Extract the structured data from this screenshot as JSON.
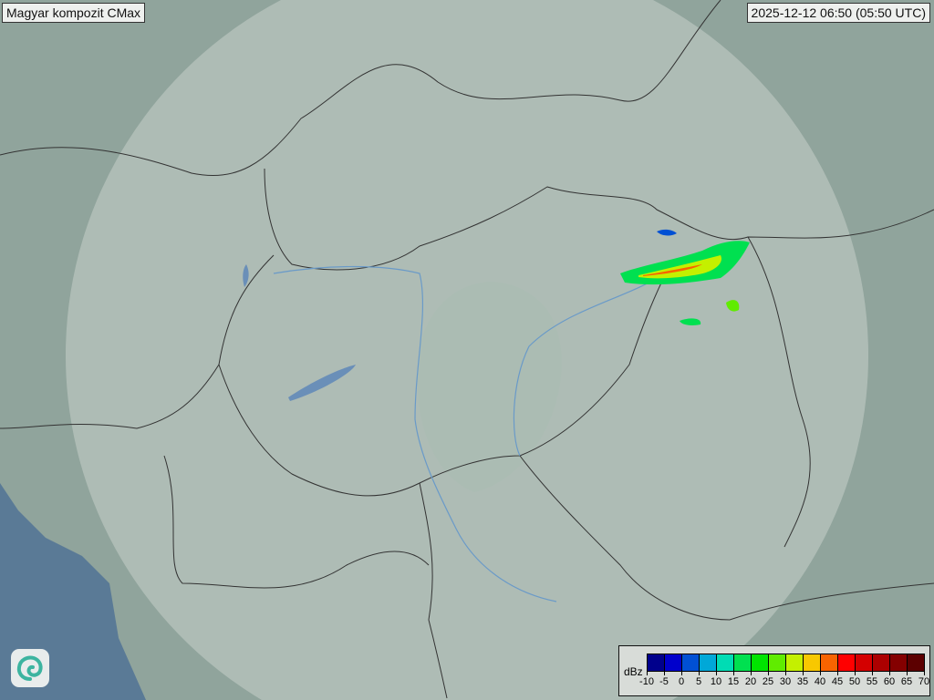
{
  "title": "Magyar kompozit  CMax",
  "timestamp": "2025-12-12 06:50 (05:50 UTC)",
  "legend": {
    "unit": "dBz",
    "ticks": [
      "-10",
      "-5",
      "0",
      "5",
      "10",
      "15",
      "20",
      "25",
      "30",
      "35",
      "40",
      "45",
      "50",
      "55",
      "60",
      "65",
      "70"
    ],
    "colors": [
      "#00008c",
      "#0000cc",
      "#0050d4",
      "#00a8d8",
      "#00dcb4",
      "#00e050",
      "#00e400",
      "#60ec00",
      "#c4f000",
      "#f8c800",
      "#f86400",
      "#ff0000",
      "#d40000",
      "#ac0000",
      "#840000",
      "#5c0000"
    ]
  },
  "logo": "swirl-logo",
  "colors": {
    "land": "#8fa39b",
    "coverage": "#c2ccc6",
    "sea": "#5a7a96",
    "border": "#333333",
    "river": "#6a9ac8"
  }
}
